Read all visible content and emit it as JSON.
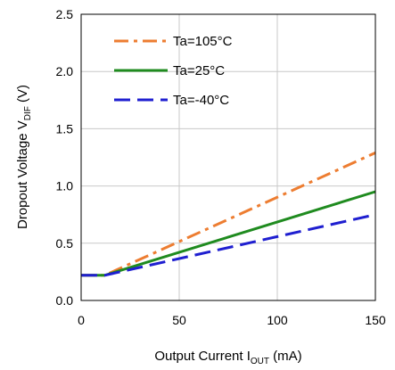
{
  "chart_data": {
    "type": "line",
    "xlabel": {
      "main": "Output Current I",
      "sub": "OUT",
      "tail": " (mA)"
    },
    "ylabel": {
      "main": "Dropout Voltage V",
      "sub": "DIF",
      "tail": "  (V)"
    },
    "xlim": [
      0,
      150
    ],
    "ylim": [
      0,
      2.5
    ],
    "xticks": [
      "0",
      "50",
      "100",
      "150"
    ],
    "yticks": [
      "0.0",
      "0.5",
      "1.0",
      "1.5",
      "2.0",
      "2.5"
    ],
    "grid": true,
    "legend_position": "top-left",
    "series": [
      {
        "name": "Ta=105°C",
        "color": "#ED7D31",
        "dash": "dash-dot",
        "x": [
          0,
          12,
          150
        ],
        "y": [
          0.22,
          0.22,
          1.29
        ]
      },
      {
        "name": "Ta=25°C",
        "color": "#1F8B1F",
        "dash": "solid",
        "x": [
          0,
          12,
          150
        ],
        "y": [
          0.22,
          0.22,
          0.95
        ]
      },
      {
        "name": "Ta=-40°C",
        "color": "#1F1FD0",
        "dash": "dash",
        "x": [
          0,
          12,
          150
        ],
        "y": [
          0.22,
          0.22,
          0.75
        ]
      }
    ]
  }
}
